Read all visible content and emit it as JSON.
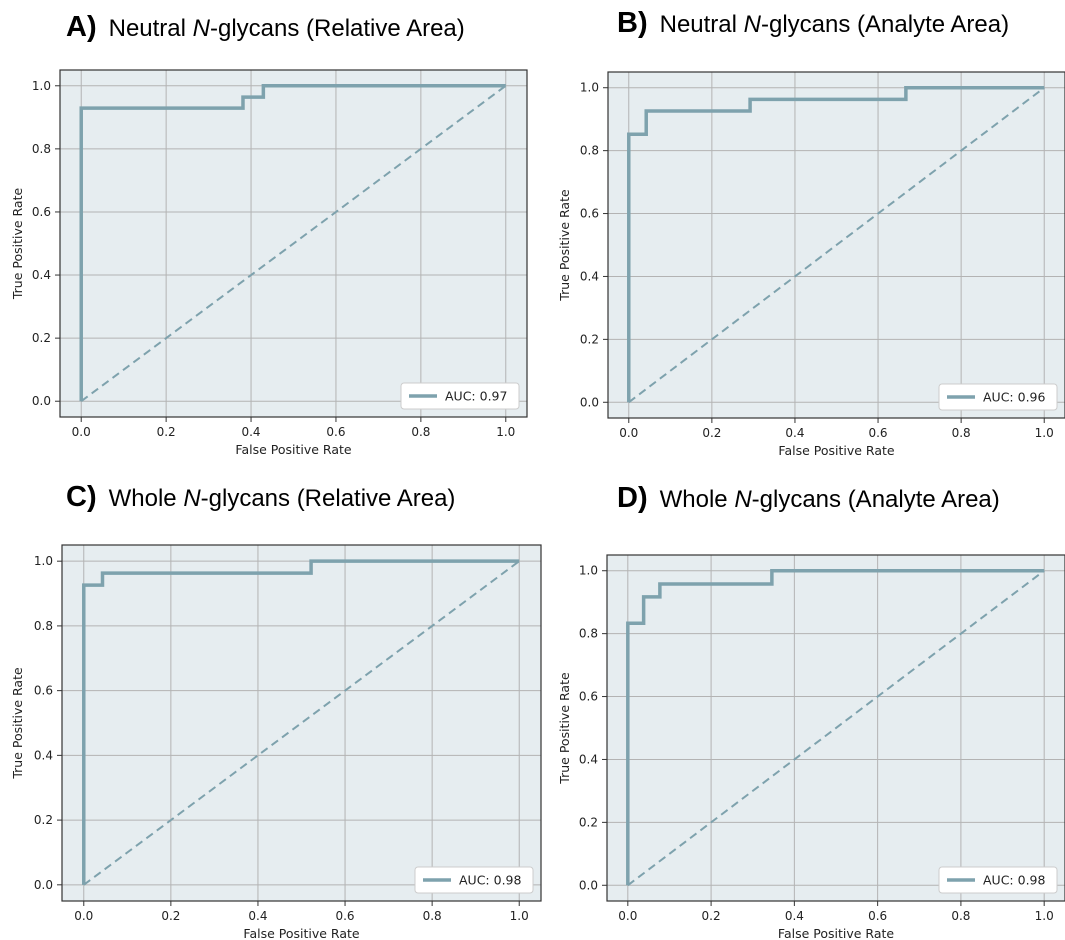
{
  "colors": {
    "plot_background": "#e6edf0",
    "grid": "#b3b3b3",
    "roc_line": "#7ea2ad",
    "diagonal": "#7ea2ad",
    "frame": "#333333"
  },
  "chart_data": [
    {
      "type": "line",
      "letter": "A)",
      "title_pre": "Neutral ",
      "title_it": "N",
      "title_post": "-glycans (Relative Area)",
      "xlabel": "False Positive Rate",
      "ylabel": "True Positive Rate",
      "xlim": [
        -0.05,
        1.05
      ],
      "ylim": [
        -0.05,
        1.05
      ],
      "xticks": [
        0.0,
        0.2,
        0.4,
        0.6,
        0.8,
        1.0
      ],
      "yticks": [
        0.0,
        0.2,
        0.4,
        0.6,
        0.8,
        1.0
      ],
      "grid": true,
      "legend": "lower right",
      "series": [
        {
          "name": "AUC: 0.97",
          "x": [
            0,
            0,
            0.381,
            0.381,
            0.429,
            0.429,
            1.0
          ],
          "y": [
            0,
            0.929,
            0.929,
            0.964,
            0.964,
            1.0,
            1.0
          ]
        }
      ],
      "diagonal": {
        "x": [
          0,
          1
        ],
        "y": [
          0,
          1
        ]
      }
    },
    {
      "type": "line",
      "letter": "B)",
      "title_pre": "Neutral ",
      "title_it": "N",
      "title_post": "-glycans (Analyte Area)",
      "xlabel": "False Positive Rate",
      "ylabel": "True Positive Rate",
      "xlim": [
        -0.05,
        1.05
      ],
      "ylim": [
        -0.05,
        1.05
      ],
      "xticks": [
        0.0,
        0.2,
        0.4,
        0.6,
        0.8,
        1.0
      ],
      "yticks": [
        0.0,
        0.2,
        0.4,
        0.6,
        0.8,
        1.0
      ],
      "grid": true,
      "legend": "lower right",
      "series": [
        {
          "name": "AUC: 0.96",
          "x": [
            0,
            0,
            0.042,
            0.042,
            0.292,
            0.292,
            0.667,
            0.667,
            1.0
          ],
          "y": [
            0,
            0.852,
            0.852,
            0.926,
            0.926,
            0.963,
            0.963,
            1.0,
            1.0
          ]
        }
      ],
      "diagonal": {
        "x": [
          0,
          1
        ],
        "y": [
          0,
          1
        ]
      }
    },
    {
      "type": "line",
      "letter": "C)",
      "title_pre": "Whole ",
      "title_it": "N",
      "title_post": "-glycans (Relative Area)",
      "xlabel": "False Positive Rate",
      "ylabel": "True Positive Rate",
      "xlim": [
        -0.05,
        1.05
      ],
      "ylim": [
        -0.05,
        1.05
      ],
      "xticks": [
        0.0,
        0.2,
        0.4,
        0.6,
        0.8,
        1.0
      ],
      "yticks": [
        0.0,
        0.2,
        0.4,
        0.6,
        0.8,
        1.0
      ],
      "grid": true,
      "legend": "lower right",
      "series": [
        {
          "name": "AUC: 0.98",
          "x": [
            0,
            0,
            0.043,
            0.043,
            0.522,
            0.522,
            1.0
          ],
          "y": [
            0,
            0.926,
            0.926,
            0.963,
            0.963,
            1.0,
            1.0
          ]
        }
      ],
      "diagonal": {
        "x": [
          0,
          1
        ],
        "y": [
          0,
          1
        ]
      }
    },
    {
      "type": "line",
      "letter": "D)",
      "title_pre": "Whole ",
      "title_it": "N",
      "title_post": "-glycans (Analyte Area)",
      "xlabel": "False Positive Rate",
      "ylabel": "True Positive Rate",
      "xlim": [
        -0.05,
        1.05
      ],
      "ylim": [
        -0.05,
        1.05
      ],
      "xticks": [
        0.0,
        0.2,
        0.4,
        0.6,
        0.8,
        1.0
      ],
      "yticks": [
        0.0,
        0.2,
        0.4,
        0.6,
        0.8,
        1.0
      ],
      "grid": true,
      "legend": "lower right",
      "series": [
        {
          "name": "AUC: 0.98",
          "x": [
            0,
            0,
            0.038,
            0.038,
            0.077,
            0.077,
            0.346,
            0.346,
            1.0
          ],
          "y": [
            0,
            0.833,
            0.833,
            0.917,
            0.917,
            0.958,
            0.958,
            1.0,
            1.0
          ]
        }
      ],
      "diagonal": {
        "x": [
          0,
          1
        ],
        "y": [
          0,
          1
        ]
      }
    }
  ]
}
